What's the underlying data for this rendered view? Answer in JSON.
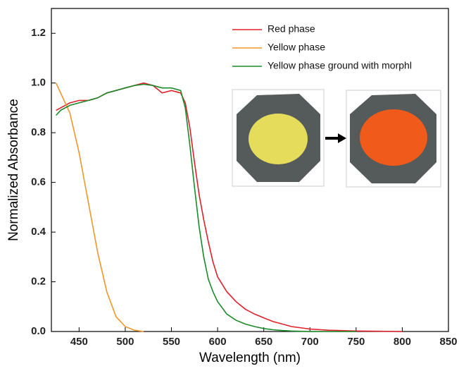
{
  "chart_data": {
    "type": "line",
    "x_label": "Wavelength (nm)",
    "y_label": "Normalized Absorbance",
    "x": [
      425,
      430,
      440,
      450,
      460,
      470,
      480,
      490,
      500,
      510,
      520,
      530,
      540,
      550,
      560,
      565,
      570,
      575,
      580,
      585,
      590,
      595,
      600,
      610,
      620,
      630,
      640,
      650,
      660,
      670,
      680,
      700,
      720,
      750,
      800,
      850
    ],
    "series": [
      {
        "name": "Red phase",
        "color": "#e0202a",
        "values": [
          0.89,
          0.9,
          0.92,
          0.93,
          0.93,
          0.94,
          0.96,
          0.97,
          0.98,
          0.99,
          1.0,
          0.99,
          0.96,
          0.97,
          0.96,
          0.92,
          0.82,
          0.68,
          0.55,
          0.45,
          0.36,
          0.28,
          0.22,
          0.16,
          0.12,
          0.09,
          0.07,
          0.055,
          0.04,
          0.03,
          0.02,
          0.01,
          0.005,
          0.002,
          0,
          null
        ]
      },
      {
        "name": "Yellow phase",
        "color": "#f0962a",
        "values": [
          1.0,
          0.96,
          0.88,
          0.72,
          0.52,
          0.32,
          0.16,
          0.06,
          0.02,
          0.005,
          0,
          null,
          null,
          null,
          null,
          null,
          null,
          null,
          null,
          null,
          null,
          null,
          null,
          null,
          null,
          null,
          null,
          null,
          null,
          null,
          null,
          null,
          null,
          null,
          null,
          null
        ]
      },
      {
        "name": "Yellow phase ground with morphl",
        "color": "#1a8a2a",
        "values": [
          0.87,
          0.89,
          0.91,
          0.92,
          0.93,
          0.94,
          0.96,
          0.97,
          0.98,
          0.99,
          0.995,
          0.99,
          0.98,
          0.98,
          0.97,
          0.9,
          0.75,
          0.58,
          0.42,
          0.3,
          0.21,
          0.16,
          0.12,
          0.07,
          0.045,
          0.03,
          0.02,
          0.012,
          0.007,
          0.004,
          0.002,
          0,
          0,
          0,
          null,
          null
        ]
      }
    ],
    "xlim": [
      420,
      850
    ],
    "xticks": [
      450,
      500,
      550,
      600,
      650,
      700,
      750,
      800,
      850
    ],
    "ylim": [
      0,
      1.3
    ],
    "yticks": [
      {
        "value": 0,
        "label": "0.0"
      },
      0.2,
      0.4,
      0.6,
      0.8,
      {
        "value": 1,
        "label": "1.0"
      },
      1.2
    ],
    "grid": false,
    "legend": "upper right"
  }
}
